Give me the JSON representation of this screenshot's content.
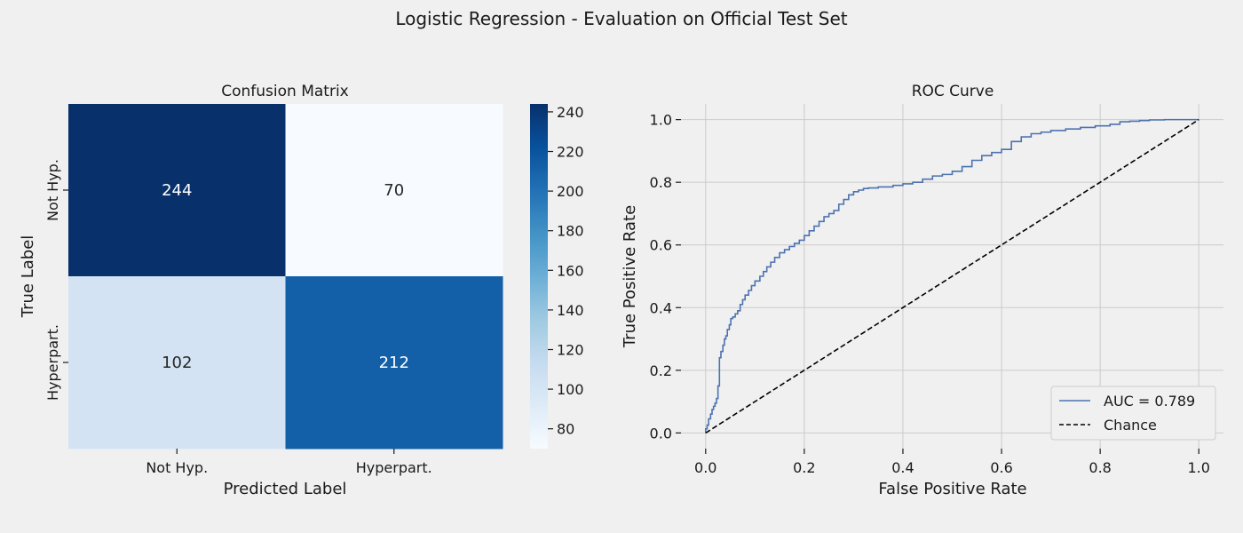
{
  "figure": {
    "title": "Logistic Regression - Evaluation on Official Test Set",
    "background": "#f0f0f0"
  },
  "chart_data": [
    {
      "type": "heatmap",
      "title": "Confusion Matrix",
      "xlabel": "Predicted Label",
      "ylabel": "True Label",
      "x_categories": [
        "Not Hyp.",
        "Hyperpart."
      ],
      "y_categories": [
        "Not Hyp.",
        "Hyperpart."
      ],
      "values": [
        [
          244,
          70
        ],
        [
          102,
          212
        ]
      ],
      "colormap": "Blues",
      "colorbar": {
        "min": 70,
        "max": 244,
        "ticks": [
          80,
          100,
          120,
          140,
          160,
          180,
          200,
          220,
          240
        ]
      }
    },
    {
      "type": "line",
      "title": "ROC Curve",
      "xlabel": "False Positive Rate",
      "ylabel": "True Positive Rate",
      "xlim": [
        -0.05,
        1.05
      ],
      "ylim": [
        -0.05,
        1.05
      ],
      "xticks": [
        "0.0",
        "0.2",
        "0.4",
        "0.6",
        "0.8",
        "1.0"
      ],
      "yticks": [
        "0.0",
        "0.2",
        "0.4",
        "0.6",
        "0.8",
        "1.0"
      ],
      "grid": true,
      "legend_position": "lower-right",
      "series": [
        {
          "name": "AUC = 0.789",
          "color": "#4c72b0",
          "style": "step",
          "points": [
            [
              0.0,
              0.0
            ],
            [
              0.003,
              0.013
            ],
            [
              0.006,
              0.025
            ],
            [
              0.01,
              0.045
            ],
            [
              0.013,
              0.06
            ],
            [
              0.016,
              0.075
            ],
            [
              0.019,
              0.085
            ],
            [
              0.022,
              0.095
            ],
            [
              0.025,
              0.11
            ],
            [
              0.028,
              0.15
            ],
            [
              0.031,
              0.24
            ],
            [
              0.035,
              0.26
            ],
            [
              0.038,
              0.28
            ],
            [
              0.041,
              0.3
            ],
            [
              0.044,
              0.31
            ],
            [
              0.048,
              0.33
            ],
            [
              0.051,
              0.345
            ],
            [
              0.055,
              0.365
            ],
            [
              0.06,
              0.37
            ],
            [
              0.065,
              0.38
            ],
            [
              0.07,
              0.39
            ],
            [
              0.075,
              0.41
            ],
            [
              0.08,
              0.425
            ],
            [
              0.087,
              0.44
            ],
            [
              0.093,
              0.455
            ],
            [
              0.1,
              0.47
            ],
            [
              0.11,
              0.485
            ],
            [
              0.117,
              0.5
            ],
            [
              0.124,
              0.515
            ],
            [
              0.132,
              0.53
            ],
            [
              0.14,
              0.545
            ],
            [
              0.15,
              0.56
            ],
            [
              0.16,
              0.575
            ],
            [
              0.17,
              0.585
            ],
            [
              0.18,
              0.595
            ],
            [
              0.19,
              0.605
            ],
            [
              0.2,
              0.615
            ],
            [
              0.21,
              0.63
            ],
            [
              0.22,
              0.645
            ],
            [
              0.23,
              0.66
            ],
            [
              0.24,
              0.675
            ],
            [
              0.25,
              0.69
            ],
            [
              0.26,
              0.7
            ],
            [
              0.27,
              0.71
            ],
            [
              0.28,
              0.73
            ],
            [
              0.29,
              0.745
            ],
            [
              0.3,
              0.76
            ],
            [
              0.31,
              0.77
            ],
            [
              0.32,
              0.775
            ],
            [
              0.33,
              0.78
            ],
            [
              0.35,
              0.782
            ],
            [
              0.38,
              0.785
            ],
            [
              0.4,
              0.79
            ],
            [
              0.42,
              0.795
            ],
            [
              0.44,
              0.8
            ],
            [
              0.46,
              0.81
            ],
            [
              0.48,
              0.82
            ],
            [
              0.5,
              0.825
            ],
            [
              0.52,
              0.835
            ],
            [
              0.54,
              0.85
            ],
            [
              0.56,
              0.87
            ],
            [
              0.58,
              0.885
            ],
            [
              0.6,
              0.895
            ],
            [
              0.62,
              0.905
            ],
            [
              0.64,
              0.93
            ],
            [
              0.66,
              0.945
            ],
            [
              0.68,
              0.955
            ],
            [
              0.7,
              0.96
            ],
            [
              0.73,
              0.965
            ],
            [
              0.76,
              0.97
            ],
            [
              0.79,
              0.975
            ],
            [
              0.82,
              0.98
            ],
            [
              0.84,
              0.985
            ],
            [
              0.86,
              0.993
            ],
            [
              0.88,
              0.995
            ],
            [
              0.9,
              0.997
            ],
            [
              0.93,
              0.999
            ],
            [
              0.96,
              1.0
            ],
            [
              1.0,
              1.0
            ]
          ]
        },
        {
          "name": "Chance",
          "color": "#000000",
          "style": "dashed",
          "points": [
            [
              0.0,
              0.0
            ],
            [
              1.0,
              1.0
            ]
          ]
        }
      ]
    }
  ]
}
